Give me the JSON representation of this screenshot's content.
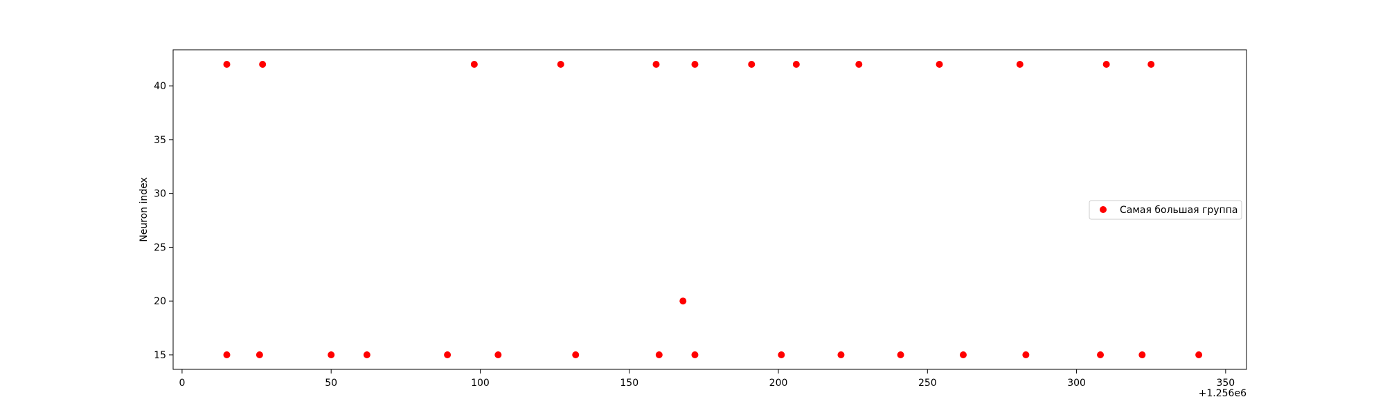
{
  "chart_data": {
    "type": "scatter",
    "title": "",
    "xlabel": "",
    "ylabel": "Neuron index",
    "x_offset_label": "+1.256e6",
    "xlim": [
      -3,
      357
    ],
    "ylim": [
      13.65,
      43.35
    ],
    "xticks": [
      "0",
      "50",
      "100",
      "150",
      "200",
      "250",
      "300",
      "350"
    ],
    "yticks": [
      "15",
      "20",
      "25",
      "30",
      "35",
      "40"
    ],
    "grid": false,
    "legend_position": "center-right",
    "colors": {
      "points": "#ff0000",
      "axes": "#000000",
      "legend_border": "#cccccc"
    },
    "series": [
      {
        "name": "Самая большая группа",
        "points": [
          {
            "x": 1256015,
            "y": 42
          },
          {
            "x": 1256027,
            "y": 42
          },
          {
            "x": 1256098,
            "y": 42
          },
          {
            "x": 1256127,
            "y": 42
          },
          {
            "x": 1256159,
            "y": 42
          },
          {
            "x": 1256172,
            "y": 42
          },
          {
            "x": 1256191,
            "y": 42
          },
          {
            "x": 1256206,
            "y": 42
          },
          {
            "x": 1256227,
            "y": 42
          },
          {
            "x": 1256254,
            "y": 42
          },
          {
            "x": 1256281,
            "y": 42
          },
          {
            "x": 1256310,
            "y": 42
          },
          {
            "x": 1256325,
            "y": 42
          },
          {
            "x": 1256168,
            "y": 20
          },
          {
            "x": 1256015,
            "y": 15
          },
          {
            "x": 1256026,
            "y": 15
          },
          {
            "x": 1256050,
            "y": 15
          },
          {
            "x": 1256062,
            "y": 15
          },
          {
            "x": 1256089,
            "y": 15
          },
          {
            "x": 1256106,
            "y": 15
          },
          {
            "x": 1256132,
            "y": 15
          },
          {
            "x": 1256160,
            "y": 15
          },
          {
            "x": 1256172,
            "y": 15
          },
          {
            "x": 1256201,
            "y": 15
          },
          {
            "x": 1256221,
            "y": 15
          },
          {
            "x": 1256241,
            "y": 15
          },
          {
            "x": 1256262,
            "y": 15
          },
          {
            "x": 1256283,
            "y": 15
          },
          {
            "x": 1256308,
            "y": 15
          },
          {
            "x": 1256322,
            "y": 15
          },
          {
            "x": 1256341,
            "y": 15
          }
        ]
      }
    ]
  }
}
